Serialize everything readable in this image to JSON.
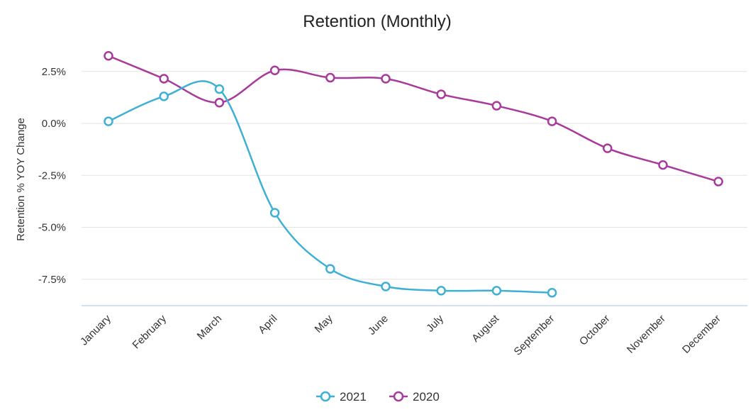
{
  "chart_data": {
    "type": "line",
    "title": "Retention (Monthly)",
    "xlabel": "",
    "ylabel": "Retention % YOY Change",
    "categories": [
      "January",
      "February",
      "March",
      "April",
      "May",
      "June",
      "July",
      "August",
      "September",
      "October",
      "November",
      "December"
    ],
    "y_ticks": [
      2.5,
      0.0,
      -2.5,
      -5.0,
      -7.5
    ],
    "y_tick_labels": [
      "2.5%",
      "0.0%",
      "-2.5%",
      "-5.0%",
      "-7.5%"
    ],
    "ylim": [
      -8.9,
      3.7
    ],
    "grid": true,
    "legend_position": "bottom",
    "series": [
      {
        "name": "2021",
        "color": "#3fb0d5",
        "values": [
          0.1,
          1.3,
          1.65,
          -4.3,
          -7.0,
          -7.85,
          -8.05,
          -8.05,
          -8.15,
          null,
          null,
          null
        ]
      },
      {
        "name": "2020",
        "color": "#a83a9c",
        "values": [
          3.25,
          2.15,
          1.0,
          2.55,
          2.2,
          2.15,
          1.4,
          0.85,
          0.1,
          -1.2,
          -2.0,
          -2.8
        ]
      }
    ]
  }
}
